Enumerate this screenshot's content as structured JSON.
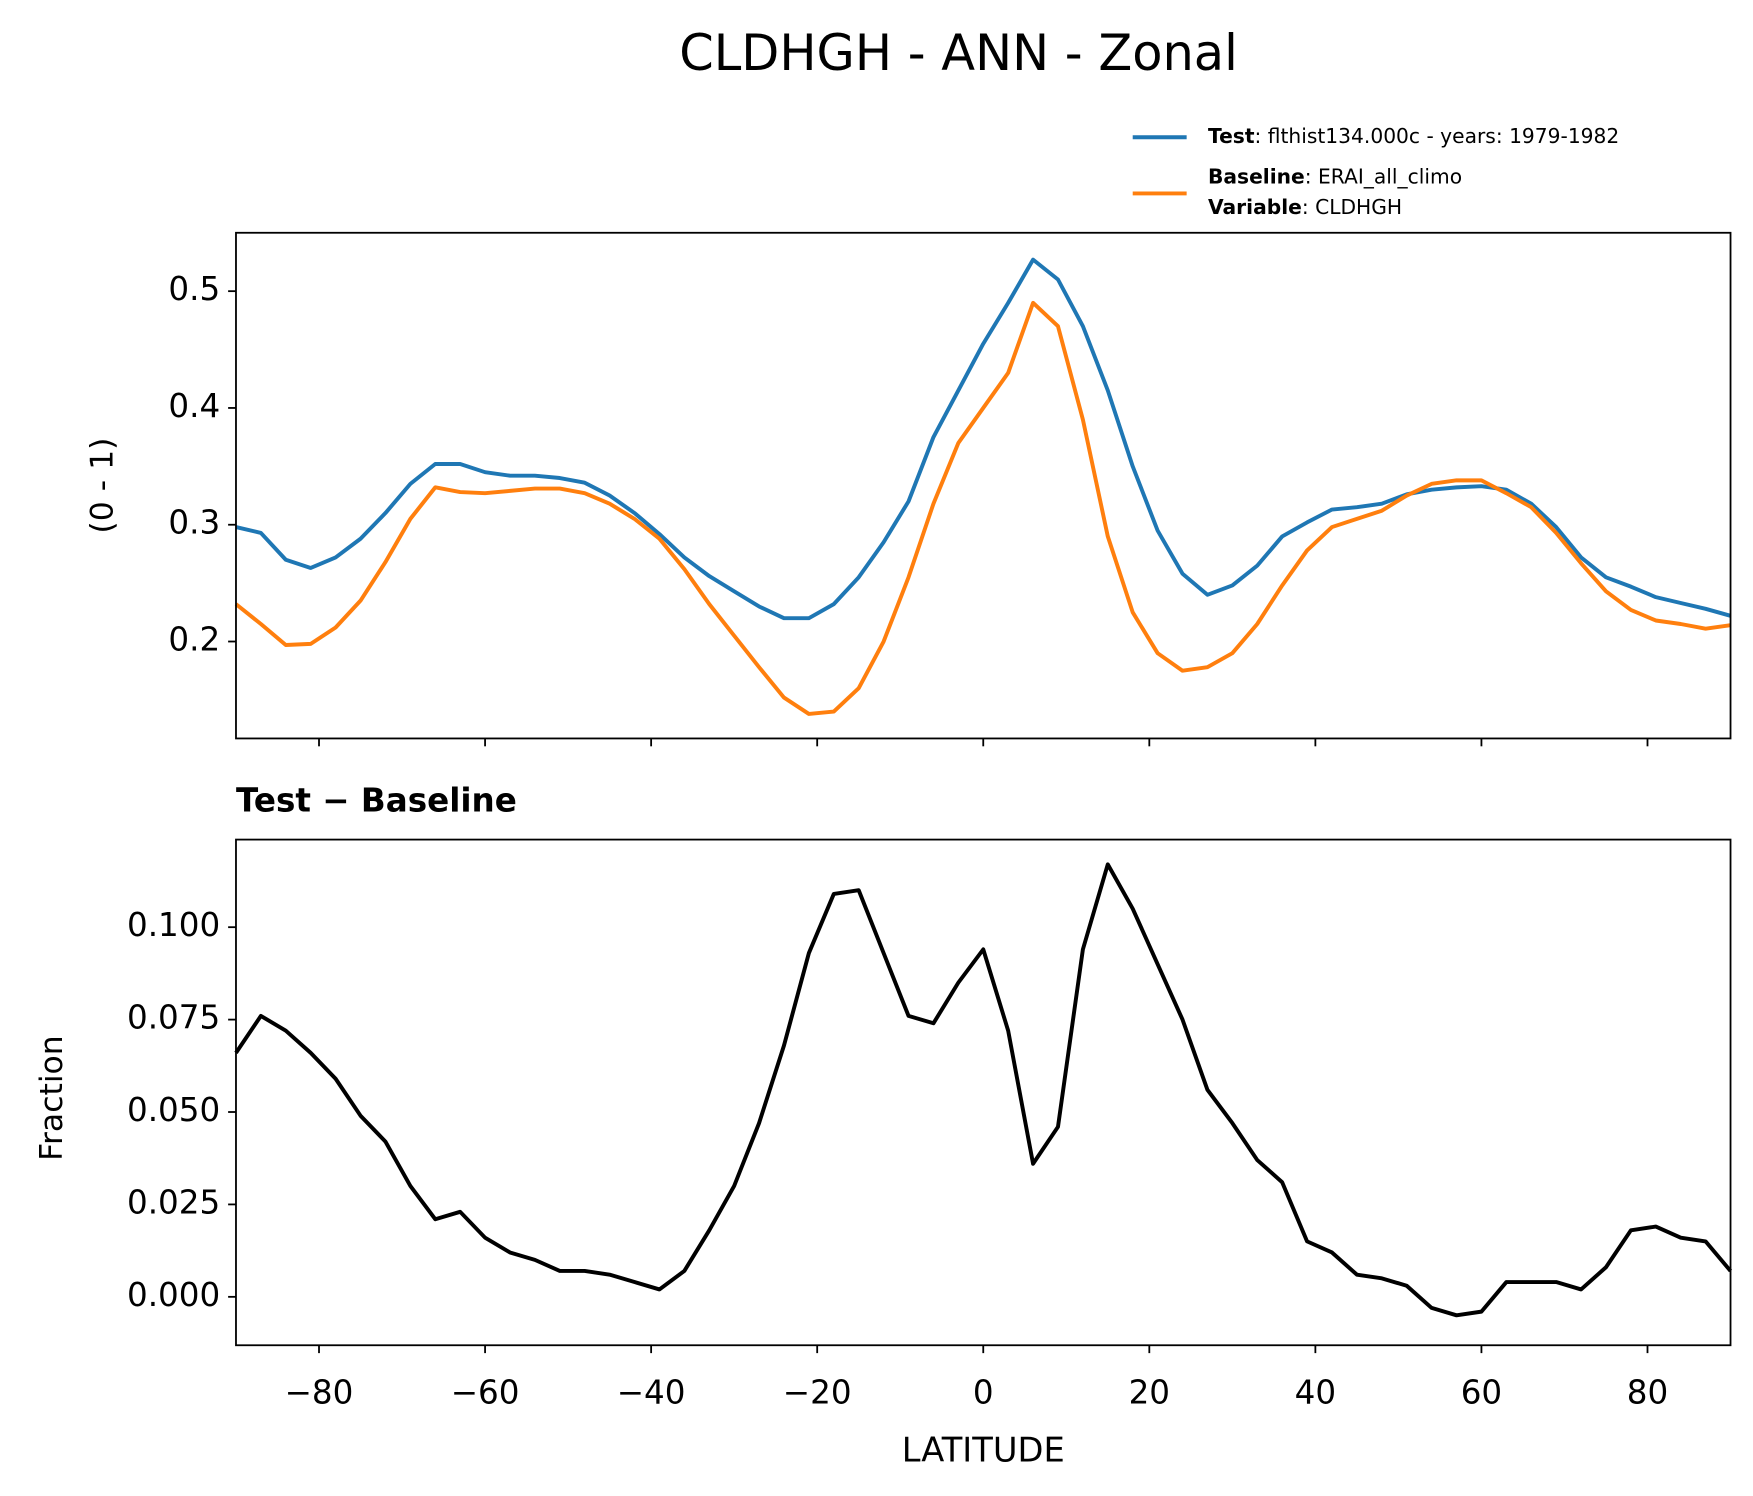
{
  "chart_data": [
    {
      "type": "line",
      "title": "CLDHGH - ANN - Zonal",
      "ylabel": "(0 - 1)",
      "x": [
        -90,
        -87,
        -84,
        -81,
        -78,
        -75,
        -72,
        -69,
        -66,
        -63,
        -60,
        -57,
        -54,
        -51,
        -48,
        -45,
        -42,
        -39,
        -36,
        -33,
        -30,
        -27,
        -24,
        -21,
        -18,
        -15,
        -12,
        -9,
        -6,
        -3,
        0,
        3,
        6,
        9,
        12,
        15,
        18,
        21,
        24,
        27,
        30,
        33,
        36,
        39,
        42,
        45,
        48,
        51,
        54,
        57,
        60,
        63,
        66,
        69,
        72,
        75,
        78,
        81,
        84,
        87,
        90
      ],
      "series": [
        {
          "name": "Test",
          "detail": ": flthist134.000c - years: 1979-1982",
          "color": "#1f77b4",
          "values": [
            0.298,
            0.293,
            0.27,
            0.263,
            0.272,
            0.288,
            0.31,
            0.335,
            0.352,
            0.352,
            0.345,
            0.342,
            0.342,
            0.34,
            0.336,
            0.325,
            0.31,
            0.292,
            0.272,
            0.256,
            0.243,
            0.23,
            0.22,
            0.22,
            0.232,
            0.255,
            0.285,
            0.32,
            0.375,
            0.415,
            0.455,
            0.49,
            0.527,
            0.51,
            0.47,
            0.415,
            0.35,
            0.295,
            0.258,
            0.24,
            0.248,
            0.265,
            0.29,
            0.302,
            0.313,
            0.315,
            0.318,
            0.326,
            0.33,
            0.332,
            0.333,
            0.33,
            0.318,
            0.298,
            0.272,
            0.255,
            0.247,
            0.238,
            0.233,
            0.228,
            0.222
          ]
        },
        {
          "name": "Baseline",
          "detail": ": ERAI_all_climo",
          "color": "#ff7f0e",
          "values": [
            0.232,
            0.215,
            0.197,
            0.198,
            0.212,
            0.235,
            0.268,
            0.305,
            0.332,
            0.328,
            0.327,
            0.329,
            0.331,
            0.331,
            0.327,
            0.318,
            0.305,
            0.288,
            0.262,
            0.232,
            0.205,
            0.178,
            0.152,
            0.138,
            0.14,
            0.16,
            0.2,
            0.255,
            0.318,
            0.37,
            0.4,
            0.43,
            0.49,
            0.47,
            0.39,
            0.29,
            0.225,
            0.19,
            0.175,
            0.178,
            0.19,
            0.215,
            0.248,
            0.278,
            0.298,
            0.305,
            0.312,
            0.325,
            0.335,
            0.338,
            0.338,
            0.327,
            0.315,
            0.293,
            0.267,
            0.243,
            0.227,
            0.218,
            0.215,
            0.211,
            0.214
          ]
        }
      ],
      "legend_note": [
        "Variable",
        ": CLDHGH"
      ],
      "xlim": [
        -90,
        90
      ],
      "xticks": [
        -80,
        -60,
        -40,
        -20,
        0,
        20,
        40,
        60,
        80
      ],
      "show_xtick_labels": false,
      "ylim": [
        0.117,
        0.55
      ],
      "yticks": [
        0.2,
        0.3,
        0.4,
        0.5
      ]
    },
    {
      "type": "line",
      "title": "Test − Baseline",
      "ylabel": "Fraction",
      "xlabel": "LATITUDE",
      "x": [
        -90,
        -87,
        -84,
        -81,
        -78,
        -75,
        -72,
        -69,
        -66,
        -63,
        -60,
        -57,
        -54,
        -51,
        -48,
        -45,
        -42,
        -39,
        -36,
        -33,
        -30,
        -27,
        -24,
        -21,
        -18,
        -15,
        -12,
        -9,
        -6,
        -3,
        0,
        3,
        6,
        9,
        12,
        15,
        18,
        21,
        24,
        27,
        30,
        33,
        36,
        39,
        42,
        45,
        48,
        51,
        54,
        57,
        60,
        63,
        66,
        69,
        72,
        75,
        78,
        81,
        84,
        87,
        90
      ],
      "series": [
        {
          "color": "#000000",
          "values": [
            0.066,
            0.076,
            0.072,
            0.066,
            0.059,
            0.049,
            0.042,
            0.03,
            0.021,
            0.023,
            0.016,
            0.012,
            0.01,
            0.007,
            0.007,
            0.006,
            0.004,
            0.002,
            0.007,
            0.018,
            0.03,
            0.047,
            0.068,
            0.093,
            0.109,
            0.11,
            0.093,
            0.076,
            0.074,
            0.085,
            0.094,
            0.072,
            0.036,
            0.046,
            0.094,
            0.117,
            0.105,
            0.09,
            0.075,
            0.056,
            0.047,
            0.037,
            0.031,
            0.015,
            0.012,
            0.006,
            0.005,
            0.003,
            -0.003,
            -0.005,
            -0.004,
            0.004,
            0.004,
            0.004,
            0.002,
            0.008,
            0.018,
            0.019,
            0.016,
            0.015,
            0.007
          ]
        }
      ],
      "xlim": [
        -90,
        90
      ],
      "xticks": [
        {
          "value": -80,
          "label": "−80"
        },
        {
          "value": -60,
          "label": "−60"
        },
        {
          "value": -40,
          "label": "−40"
        },
        {
          "value": -20,
          "label": "−20"
        },
        0,
        20,
        40,
        60,
        80
      ],
      "show_xtick_labels": true,
      "ylim": [
        -0.0131,
        0.1237
      ],
      "yticks": [
        {
          "value": 0,
          "label": "0.000"
        },
        {
          "value": 0.025,
          "label": "0.025"
        },
        {
          "value": 0.05,
          "label": "0.050"
        },
        {
          "value": 0.075,
          "label": "0.075"
        },
        {
          "value": 0.1,
          "label": "0.100"
        }
      ]
    }
  ]
}
